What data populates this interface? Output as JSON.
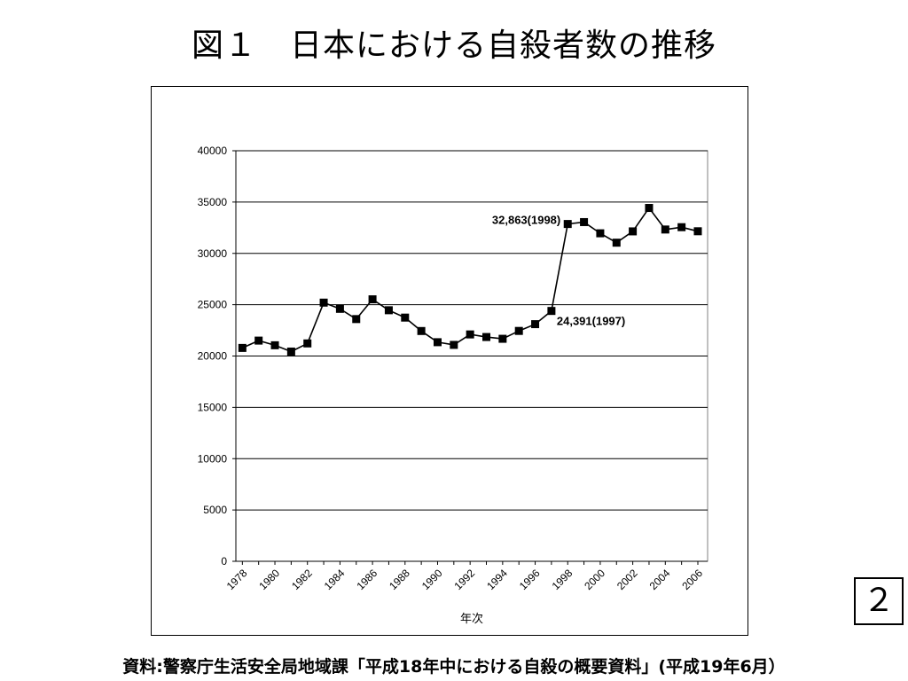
{
  "slide": {
    "title": "図１　日本における自殺者数の推移",
    "page_number": "２",
    "source": "資料:警察庁生活安全局地域課「平成18年中における自殺の概要資料」(平成19年6月）"
  },
  "chart_data": {
    "type": "line",
    "title": "",
    "xlabel": "年次",
    "ylabel": "",
    "x": [
      1978,
      1979,
      1980,
      1981,
      1982,
      1983,
      1984,
      1985,
      1986,
      1987,
      1988,
      1989,
      1990,
      1991,
      1992,
      1993,
      1994,
      1995,
      1996,
      1997,
      1998,
      1999,
      2000,
      2001,
      2002,
      2003,
      2004,
      2005,
      2006
    ],
    "series": [
      {
        "values": [
          20788,
          21503,
          21048,
          20434,
          21228,
          25202,
          24596,
          23599,
          25524,
          24460,
          23742,
          22436,
          21346,
          21084,
          22104,
          21851,
          21679,
          22445,
          23104,
          24391,
          32863,
          33048,
          31957,
          31042,
          32143,
          34427,
          32325,
          32552,
          32155
        ],
        "color": "#000000",
        "marker": "square"
      }
    ],
    "xticks": [
      "1978",
      "1980",
      "1982",
      "1984",
      "1986",
      "1988",
      "1990",
      "1992",
      "1994",
      "1996",
      "1998",
      "2000",
      "2002",
      "2004",
      "2006"
    ],
    "yticks": [
      "0",
      "5000",
      "10000",
      "15000",
      "20000",
      "25000",
      "30000",
      "35000",
      "40000"
    ],
    "ylim": [
      0,
      40000
    ],
    "grid": "horizontal",
    "legend": "none",
    "annotations": [
      {
        "text": "32,863(1998)",
        "x": 1998,
        "y": 32863,
        "position": "left"
      },
      {
        "text": "24,391(1997)",
        "x": 1997,
        "y": 24391,
        "position": "right-below"
      }
    ]
  }
}
